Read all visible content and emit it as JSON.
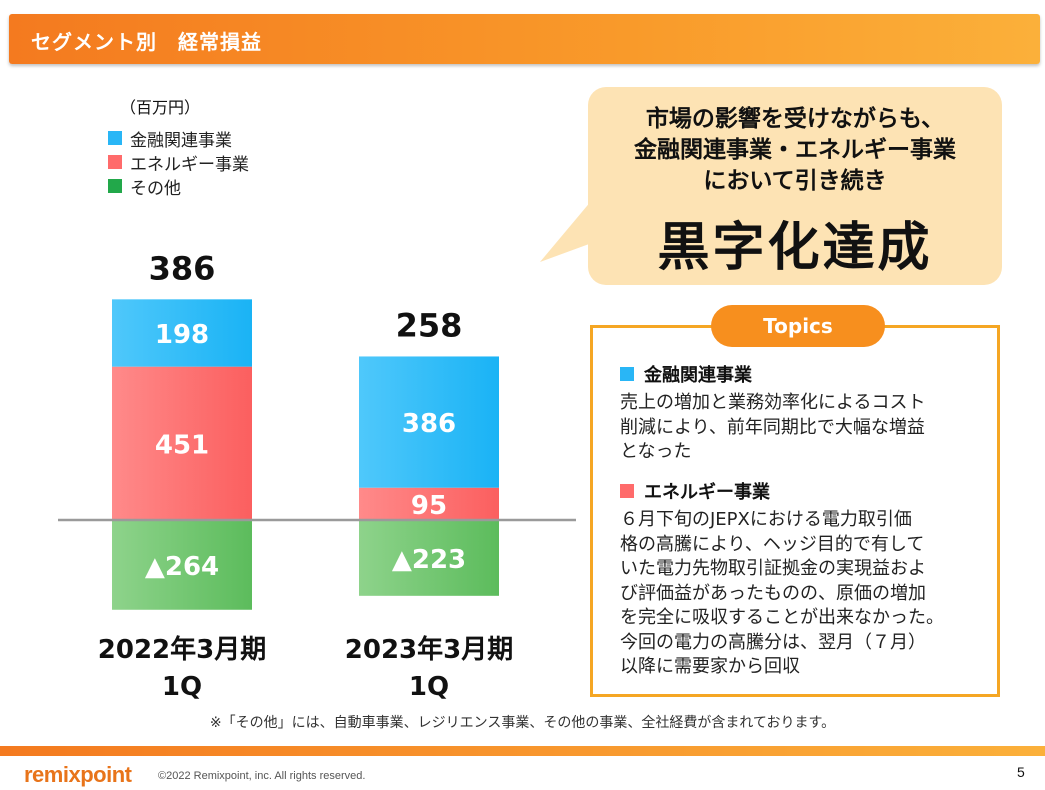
{
  "header": {
    "title": "セグメント別　経常損益"
  },
  "unit_label": "（百万円）",
  "legend": [
    {
      "label": "金融関連事業",
      "color": "#29b6f6"
    },
    {
      "label": "エネルギー事業",
      "color": "#ff6b6b"
    },
    {
      "label": "その他",
      "color": "#22a84a"
    }
  ],
  "chart_data": {
    "type": "bar",
    "stacked": true,
    "categories": [
      "2022年3月期\n1Q",
      "2023年3月期\n1Q"
    ],
    "category_lines": [
      [
        "2022年3月期",
        "1Q"
      ],
      [
        "2023年3月期",
        "1Q"
      ]
    ],
    "series": [
      {
        "name": "金融関連事業",
        "values": [
          198,
          386
        ],
        "labels": [
          "198",
          "386"
        ],
        "color": "#29b6f6"
      },
      {
        "name": "エネルギー事業",
        "values": [
          451,
          95
        ],
        "labels": [
          "451",
          "95"
        ],
        "color": "#ff6b6b"
      },
      {
        "name": "その他",
        "values": [
          -264,
          -223
        ],
        "labels": [
          "▲264",
          "▲223"
        ],
        "color": "#6cc36c"
      }
    ],
    "totals": [
      386,
      258
    ],
    "total_labels": [
      "386",
      "258"
    ],
    "ylim": [
      -264,
      649
    ]
  },
  "bubble": {
    "lines": [
      "市場の影響を受けながらも、",
      "金融関連事業・エネルギー事業",
      "において引き続き"
    ],
    "big_text": "黒字化達成"
  },
  "topics": {
    "title": "Topics",
    "sections": [
      {
        "heading": "金融関連事業",
        "color": "#29b6f6",
        "body": [
          "売上の増加と業務効率化によるコスト",
          "削減により、前年同期比で大幅な増益",
          "となった"
        ]
      },
      {
        "heading": "エネルギー事業",
        "color": "#ff6b6b",
        "body": [
          "６月下旬のJEPXにおける電力取引価",
          "格の高騰により、ヘッジ目的で有して",
          "いた電力先物取引証拠金の実現益およ",
          "び評価益があったものの、原価の増加",
          "を完全に吸収することが出来なかった。",
          "今回の電力の高騰分は、翌月（７月）",
          "以降に需要家から回収"
        ]
      }
    ]
  },
  "footnote": "※「その他」には、自動車事業、レジリエンス事業、その他の事業、全社経費が含まれております。",
  "footer": {
    "logo": "remixpoint",
    "copyright": "©2022 Remixpoint, inc. All rights reserved.",
    "page": "5"
  }
}
